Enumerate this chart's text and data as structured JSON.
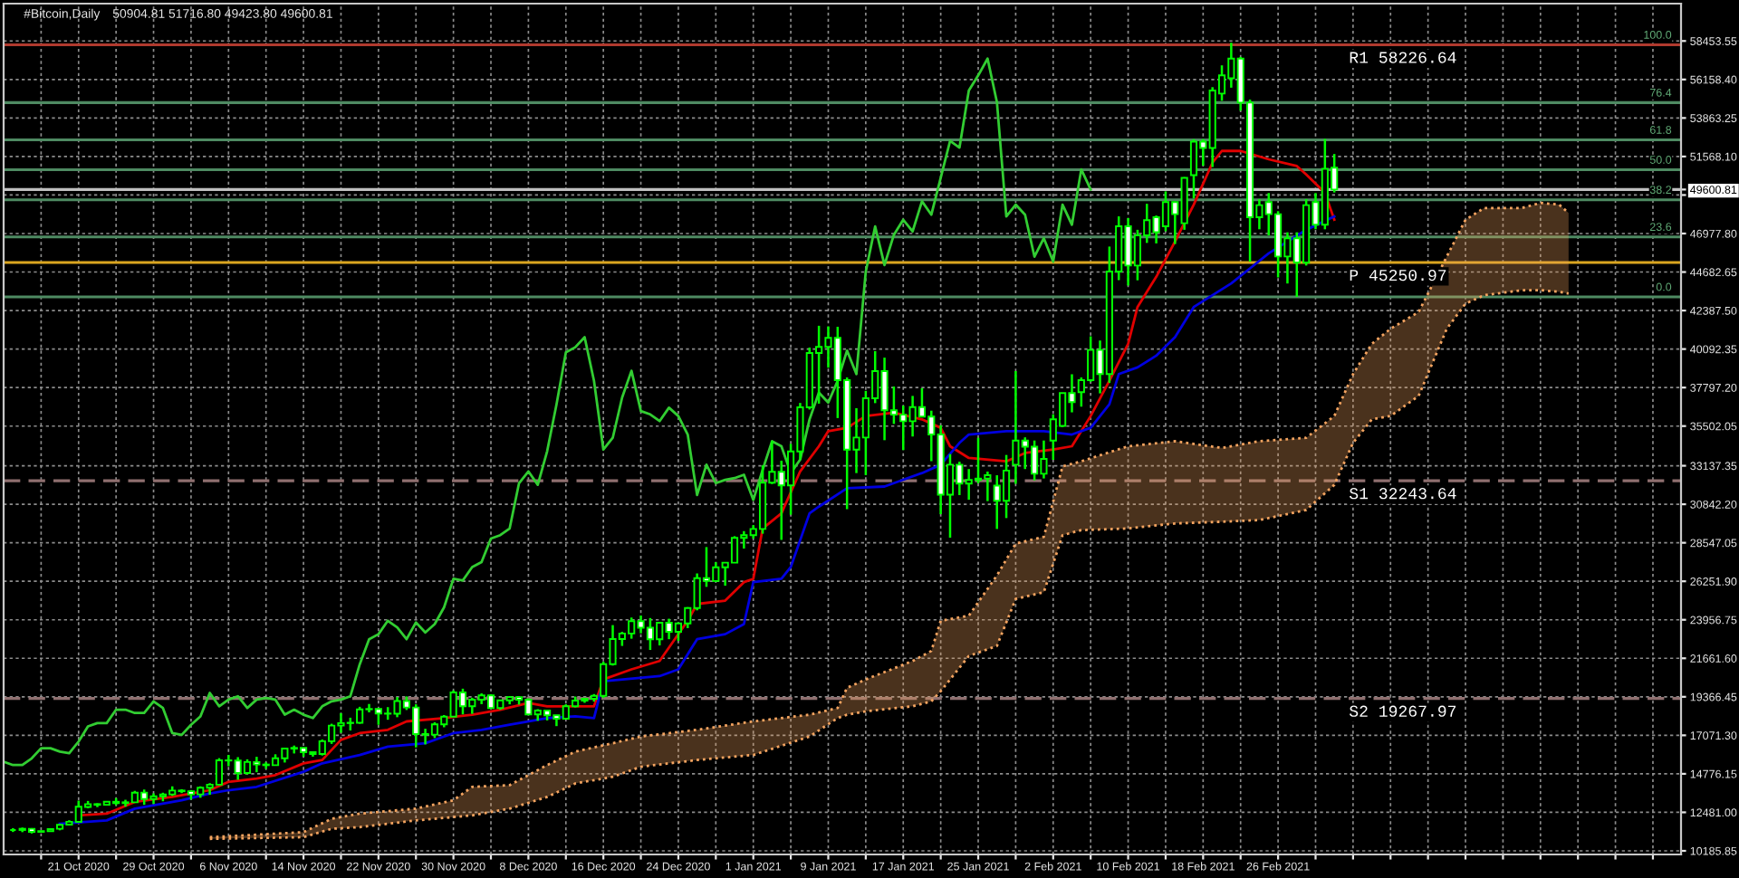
{
  "chart_data": {
    "type": "candlestick",
    "title": "#Bitcoin,Daily",
    "subtitle": "50904.81 51716.80 49423.80 49600.81",
    "x": [
      "2020-10-14",
      "2020-10-15",
      "2020-10-16",
      "2020-10-17",
      "2020-10-18",
      "2020-10-19",
      "2020-10-20",
      "2020-10-21",
      "2020-10-22",
      "2020-10-23",
      "2020-10-24",
      "2020-10-25",
      "2020-10-26",
      "2020-10-27",
      "2020-10-28",
      "2020-10-29",
      "2020-10-30",
      "2020-10-31",
      "2020-11-01",
      "2020-11-02",
      "2020-11-03",
      "2020-11-04",
      "2020-11-05",
      "2020-11-06",
      "2020-11-07",
      "2020-11-08",
      "2020-11-09",
      "2020-11-10",
      "2020-11-11",
      "2020-11-12",
      "2020-11-13",
      "2020-11-14",
      "2020-11-15",
      "2020-11-16",
      "2020-11-17",
      "2020-11-18",
      "2020-11-19",
      "2020-11-20",
      "2020-11-21",
      "2020-11-22",
      "2020-11-23",
      "2020-11-24",
      "2020-11-25",
      "2020-11-26",
      "2020-11-27",
      "2020-11-28",
      "2020-11-29",
      "2020-11-30",
      "2020-12-01",
      "2020-12-02",
      "2020-12-03",
      "2020-12-04",
      "2020-12-05",
      "2020-12-06",
      "2020-12-07",
      "2020-12-08",
      "2020-12-09",
      "2020-12-10",
      "2020-12-11",
      "2020-12-12",
      "2020-12-13",
      "2020-12-14",
      "2020-12-15",
      "2020-12-16",
      "2020-12-17",
      "2020-12-18",
      "2020-12-19",
      "2020-12-20",
      "2020-12-21",
      "2020-12-22",
      "2020-12-23",
      "2020-12-24",
      "2020-12-25",
      "2020-12-26",
      "2020-12-27",
      "2020-12-28",
      "2020-12-29",
      "2020-12-30",
      "2020-12-31",
      "2021-01-01",
      "2021-01-02",
      "2021-01-03",
      "2021-01-04",
      "2021-01-05",
      "2021-01-06",
      "2021-01-07",
      "2021-01-08",
      "2021-01-09",
      "2021-01-10",
      "2021-01-11",
      "2021-01-12",
      "2021-01-13",
      "2021-01-14",
      "2021-01-15",
      "2021-01-16",
      "2021-01-17",
      "2021-01-18",
      "2021-01-19",
      "2021-01-20",
      "2021-01-21",
      "2021-01-22",
      "2021-01-23",
      "2021-01-24",
      "2021-01-25",
      "2021-01-26",
      "2021-01-27",
      "2021-01-28",
      "2021-01-29",
      "2021-01-30",
      "2021-01-31",
      "2021-02-01",
      "2021-02-02",
      "2021-02-03",
      "2021-02-04",
      "2021-02-05",
      "2021-02-06",
      "2021-02-07",
      "2021-02-08",
      "2021-02-09",
      "2021-02-10",
      "2021-02-11",
      "2021-02-12",
      "2021-02-13",
      "2021-02-14",
      "2021-02-15",
      "2021-02-16",
      "2021-02-17",
      "2021-02-18",
      "2021-02-19",
      "2021-02-20",
      "2021-02-21",
      "2021-02-22",
      "2021-02-23",
      "2021-02-24",
      "2021-02-25",
      "2021-02-26",
      "2021-02-27",
      "2021-02-28",
      "2021-03-01",
      "2021-03-02",
      "2021-03-03",
      "2021-03-04"
    ],
    "ohlc": [
      [
        11430,
        11540,
        11310,
        11430
      ],
      [
        11430,
        11570,
        11300,
        11500
      ],
      [
        11500,
        11540,
        11220,
        11320
      ],
      [
        11320,
        11390,
        11290,
        11360
      ],
      [
        11360,
        11480,
        11350,
        11480
      ],
      [
        11500,
        11800,
        11410,
        11740
      ],
      [
        11750,
        12010,
        11720,
        11920
      ],
      [
        11910,
        13180,
        11900,
        12820
      ],
      [
        12800,
        13160,
        12720,
        12970
      ],
      [
        12970,
        13020,
        12790,
        12930
      ],
      [
        12930,
        13150,
        12890,
        13110
      ],
      [
        13110,
        13330,
        12910,
        13030
      ],
      [
        13030,
        13230,
        12820,
        13080
      ],
      [
        13080,
        13760,
        13060,
        13650
      ],
      [
        13660,
        13840,
        12930,
        13270
      ],
      [
        13270,
        13610,
        12980,
        13440
      ],
      [
        13440,
        13650,
        13140,
        13550
      ],
      [
        13550,
        14030,
        13460,
        13780
      ],
      [
        13780,
        13860,
        13630,
        13740
      ],
      [
        13740,
        13810,
        13240,
        13550
      ],
      [
        13550,
        14030,
        13350,
        13950
      ],
      [
        13950,
        14220,
        13530,
        14130
      ],
      [
        14130,
        15710,
        14100,
        15580
      ],
      [
        15580,
        15900,
        15230,
        15570
      ],
      [
        15570,
        15770,
        14420,
        14830
      ],
      [
        14830,
        15640,
        14740,
        15480
      ],
      [
        15480,
        15790,
        14870,
        15330
      ],
      [
        15330,
        15460,
        15070,
        15290
      ],
      [
        15290,
        15940,
        15280,
        15700
      ],
      [
        15700,
        16320,
        15450,
        16280
      ],
      [
        16280,
        16460,
        15990,
        16320
      ],
      [
        16320,
        16330,
        15800,
        16070
      ],
      [
        16070,
        16120,
        15800,
        15960
      ],
      [
        15960,
        16820,
        15870,
        16720
      ],
      [
        16720,
        17760,
        16560,
        17650
      ],
      [
        17650,
        18390,
        17220,
        17800
      ],
      [
        17800,
        18120,
        17360,
        17820
      ],
      [
        17820,
        18770,
        17760,
        18620
      ],
      [
        18620,
        18940,
        18440,
        18640
      ],
      [
        18640,
        18680,
        17700,
        18370
      ],
      [
        18370,
        18750,
        18000,
        18360
      ],
      [
        18360,
        19350,
        18150,
        19110
      ],
      [
        19110,
        19390,
        18580,
        18730
      ],
      [
        18730,
        18920,
        16350,
        17150
      ],
      [
        17150,
        17460,
        16530,
        17110
      ],
      [
        17110,
        17850,
        16910,
        17720
      ],
      [
        17720,
        18280,
        17550,
        18180
      ],
      [
        18180,
        19750,
        18170,
        19630
      ],
      [
        19630,
        19850,
        18320,
        18800
      ],
      [
        18800,
        19310,
        18350,
        19200
      ],
      [
        19200,
        19570,
        18930,
        19450
      ],
      [
        19450,
        19510,
        18700,
        18700
      ],
      [
        18700,
        19160,
        18590,
        19150
      ],
      [
        19150,
        19410,
        18920,
        19350
      ],
      [
        19350,
        19390,
        18900,
        19190
      ],
      [
        19190,
        19280,
        18270,
        18320
      ],
      [
        18320,
        18630,
        17940,
        18550
      ],
      [
        18550,
        18560,
        17960,
        18260
      ],
      [
        18260,
        18270,
        17620,
        18060
      ],
      [
        18060,
        18920,
        18050,
        18800
      ],
      [
        18800,
        19380,
        18730,
        19140
      ],
      [
        19140,
        19310,
        19010,
        19250
      ],
      [
        19250,
        19530,
        19080,
        19420
      ],
      [
        19420,
        21460,
        19300,
        21310
      ],
      [
        21310,
        23640,
        21230,
        22810
      ],
      [
        22810,
        23240,
        22400,
        23140
      ],
      [
        23140,
        24090,
        22830,
        23870
      ],
      [
        23870,
        24210,
        23150,
        23480
      ],
      [
        23480,
        24060,
        22160,
        22800
      ],
      [
        22800,
        23790,
        22430,
        23780
      ],
      [
        23780,
        24020,
        22800,
        23240
      ],
      [
        23240,
        23800,
        22700,
        23740
      ],
      [
        23740,
        24710,
        23460,
        24660
      ],
      [
        24660,
        26720,
        24520,
        26440
      ],
      [
        26440,
        28290,
        25920,
        26270
      ],
      [
        26270,
        27390,
        26210,
        27080
      ],
      [
        27080,
        27370,
        25990,
        27360
      ],
      [
        27360,
        28940,
        27360,
        28840
      ],
      [
        28840,
        29240,
        28200,
        29000
      ],
      [
        29000,
        29600,
        28800,
        29370
      ],
      [
        29370,
        33160,
        29090,
        32130
      ],
      [
        32130,
        34610,
        32050,
        32780
      ],
      [
        32780,
        33440,
        28720,
        31970
      ],
      [
        31970,
        34440,
        30220,
        33990
      ],
      [
        33990,
        36880,
        33510,
        36620
      ],
      [
        36620,
        40180,
        36490,
        39860
      ],
      [
        39860,
        41480,
        36840,
        40220
      ],
      [
        40220,
        41440,
        38980,
        40760
      ],
      [
        40760,
        41420,
        35980,
        38240
      ],
      [
        38240,
        38400,
        30550,
        34100
      ],
      [
        34100,
        36570,
        32700,
        34820
      ],
      [
        34820,
        37600,
        32580,
        37160
      ],
      [
        37160,
        39970,
        36870,
        38780
      ],
      [
        38780,
        39580,
        34660,
        36440
      ],
      [
        36440,
        37860,
        35630,
        36180
      ],
      [
        36180,
        36720,
        34070,
        35790
      ],
      [
        35790,
        37300,
        34880,
        36630
      ],
      [
        36630,
        37760,
        36070,
        36070
      ],
      [
        36070,
        36420,
        33410,
        35000
      ],
      [
        35000,
        35550,
        30250,
        31410
      ],
      [
        31410,
        33830,
        28850,
        33200
      ],
      [
        33200,
        33380,
        31390,
        32070
      ],
      [
        32070,
        32940,
        31110,
        32290
      ],
      [
        32290,
        34800,
        32090,
        32370
      ],
      [
        32370,
        32790,
        31030,
        32570
      ],
      [
        31950,
        32570,
        29370,
        31050
      ],
      [
        31050,
        33780,
        30020,
        32850
      ],
      [
        33200,
        38780,
        32060,
        34640
      ],
      [
        34640,
        34830,
        32940,
        34270
      ],
      [
        34270,
        34640,
        32270,
        32660
      ],
      [
        32660,
        34640,
        32380,
        33540
      ],
      [
        34640,
        36200,
        33490,
        35900
      ],
      [
        35510,
        37480,
        35440,
        37470
      ],
      [
        37470,
        38590,
        36320,
        36930
      ],
      [
        37520,
        38400,
        36660,
        38240
      ],
      [
        38240,
        40850,
        38140,
        40040
      ],
      [
        40040,
        40600,
        37450,
        38600
      ],
      [
        38600,
        46200,
        38080,
        44710
      ],
      [
        44710,
        48000,
        44200,
        47410
      ],
      [
        47410,
        47900,
        43880,
        45070
      ],
      [
        45070,
        47200,
        44190,
        46870
      ],
      [
        46870,
        48750,
        46420,
        47770
      ],
      [
        47950,
        48050,
        46390,
        47060
      ],
      [
        47410,
        49490,
        47110,
        48850
      ],
      [
        48850,
        48880,
        46350,
        48130
      ],
      [
        47590,
        50340,
        47200,
        50290
      ],
      [
        50460,
        52600,
        49070,
        52450
      ],
      [
        52450,
        52600,
        51020,
        52080
      ],
      [
        52080,
        55700,
        50940,
        55500
      ],
      [
        55320,
        57000,
        54890,
        56400
      ],
      [
        56230,
        58350,
        55670,
        57400
      ],
      [
        57400,
        57500,
        54300,
        54780
      ],
      [
        54780,
        54960,
        45300,
        47950
      ],
      [
        47950,
        49030,
        47230,
        48670
      ],
      [
        48850,
        49390,
        46870,
        48130
      ],
      [
        48130,
        48310,
        44360,
        45610
      ],
      [
        45610,
        47050,
        44000,
        46690
      ],
      [
        46690,
        47050,
        43200,
        45250
      ],
      [
        45250,
        49030,
        45070,
        48670
      ],
      [
        48850,
        49390,
        47230,
        47500
      ],
      [
        47500,
        52620,
        47230,
        50830
      ],
      [
        50904.81,
        51716.8,
        49423.8,
        49600.81
      ]
    ],
    "color": "#00ff00",
    "colors": [
      "#00ff00",
      "#000000",
      "#ffffff",
      "#000000",
      "#000000",
      "#000000",
      "#000000",
      "#000000",
      "#000000",
      "#ffffff",
      "#000000",
      "#ffffff",
      "#000000",
      "#000000",
      "#ffffff",
      "#000000",
      "#000000",
      "#000000",
      "#ffffff",
      "#ffffff",
      "#000000",
      "#000000",
      "#000000",
      "#00ff00",
      "#ffffff",
      "#000000",
      "#ffffff",
      "#ffffff",
      "#000000",
      "#000000",
      "#000000",
      "#ffffff",
      "#ffffff",
      "#000000",
      "#000000",
      "#000000",
      "#00ff00",
      "#000000",
      "#00ff00",
      "#ffffff",
      "#00ff00",
      "#000000",
      "#ffffff",
      "#ffffff",
      "#ffffff",
      "#000000",
      "#000000",
      "#000000",
      "#ffffff",
      "#000000",
      "#000000",
      "#ffffff",
      "#000000",
      "#000000",
      "#ffffff",
      "#ffffff",
      "#000000",
      "#ffffff",
      "#ffffff",
      "#000000",
      "#000000",
      "#000000",
      "#000000",
      "#000000",
      "#000000",
      "#000000",
      "#000000",
      "#ffffff",
      "#ffffff",
      "#000000",
      "#ffffff",
      "#000000",
      "#000000",
      "#000000",
      "#ffffff",
      "#000000",
      "#000000",
      "#000000",
      "#000000",
      "#000000",
      "#000000",
      "#000000",
      "#ffffff",
      "#000000",
      "#000000",
      "#000000",
      "#000000",
      "#000000",
      "#ffffff",
      "#ffffff",
      "#000000",
      "#000000",
      "#000000",
      "#ffffff",
      "#ffffff",
      "#ffffff",
      "#000000",
      "#ffffff",
      "#ffffff",
      "#ffffff",
      "#000000",
      "#ffffff",
      "#000000",
      "#000000",
      "#000000",
      "#ffffff",
      "#000000",
      "#000000",
      "#ffffff",
      "#ffffff",
      "#000000",
      "#000000",
      "#000000",
      "#ffffff",
      "#000000",
      "#000000",
      "#ffffff",
      "#000000",
      "#000000",
      "#ffffff",
      "#000000",
      "#000000",
      "#ffffff",
      "#000000",
      "#ffffff",
      "#000000",
      "#000000",
      "#ffffff",
      "#000000",
      "#000000",
      "#000000",
      "#ffffff",
      "#ffffff",
      "#000000",
      "#ffffff",
      "#ffffff",
      "#000000",
      "#ffffff",
      "#000000",
      "#ffffff",
      "#000000",
      "#ffffff"
    ],
    "series": [
      {
        "type": "line",
        "color": "#f4a460",
        "line_style": "dotted",
        "x": [
          "2020-11-04",
          "2020-11-14",
          "2020-11-17",
          "2020-11-20",
          "2020-11-26",
          "2020-11-30",
          "2020-12-02",
          "2020-12-06",
          "2020-12-10",
          "2020-12-13",
          "2020-12-17",
          "2020-12-20",
          "2020-12-26",
          "2021-01-01",
          "2021-01-07",
          "2021-01-10",
          "2021-01-11",
          "2021-01-13",
          "2021-01-18",
          "2021-01-20",
          "2021-01-21",
          "2021-01-24",
          "2021-01-27",
          "2021-01-29",
          "2021-02-01",
          "2021-02-03",
          "2021-02-05",
          "2021-02-10",
          "2021-02-15",
          "2021-02-20",
          "2021-02-24",
          "2021-03-01",
          "2021-03-04",
          "2021-03-06",
          "2021-03-08",
          "2021-03-10",
          "2021-03-13",
          "2021-03-16",
          "2021-03-18",
          "2021-03-20",
          "2021-03-24",
          "2021-03-26",
          "2021-03-28",
          "2021-03-29"
        ],
        "values": [
          11000,
          11300,
          12100,
          12400,
          12700,
          13200,
          14000,
          14100,
          15300,
          16100,
          16600,
          17000,
          17400,
          17900,
          18300,
          18700,
          19900,
          20400,
          21500,
          22100,
          23900,
          24200,
          26600,
          28500,
          28900,
          33100,
          33400,
          34300,
          34600,
          34200,
          34600,
          34800,
          36100,
          38600,
          40400,
          41300,
          42300,
          45600,
          47800,
          48500,
          48500,
          48800,
          48700,
          48200
        ],
        "lower": [
          10900,
          11000,
          11500,
          11600,
          12000,
          12200,
          12300,
          12700,
          13400,
          14200,
          14600,
          15200,
          15600,
          15900,
          17000,
          18100,
          18300,
          18500,
          18800,
          19100,
          19700,
          21800,
          22400,
          25200,
          25600,
          29000,
          29300,
          29400,
          29700,
          29800,
          29900,
          30500,
          32000,
          34500,
          35900,
          36100,
          37300,
          41300,
          42800,
          43300,
          43600,
          43600,
          43500,
          43400
        ],
        "upper": [
          11000,
          11300,
          12100,
          12400,
          12700,
          13200,
          14000,
          14100,
          15300,
          16100,
          16600,
          17000,
          17400,
          17900,
          18300,
          18700,
          19900,
          20400,
          21500,
          22100,
          23900,
          24200,
          26600,
          28500,
          28900,
          33100,
          33400,
          34300,
          34600,
          34200,
          34600,
          34800,
          36100,
          38600,
          40400,
          41300,
          42300,
          45600,
          47800,
          48500,
          48500,
          48800,
          48700,
          48200
        ]
      },
      {
        "type": "line",
        "color": "#f4a460",
        "line_style": "dotted",
        "x": [
          "2020-11-04",
          "2020-11-14",
          "2020-11-17",
          "2020-11-20",
          "2020-11-26",
          "2020-11-30",
          "2020-12-02",
          "2020-12-06",
          "2020-12-10",
          "2020-12-13",
          "2020-12-17",
          "2020-12-20",
          "2020-12-26",
          "2021-01-01",
          "2021-01-07",
          "2021-01-10",
          "2021-01-11",
          "2021-01-13",
          "2021-01-18",
          "2021-01-20",
          "2021-01-21",
          "2021-01-24",
          "2021-01-27",
          "2021-01-29",
          "2021-02-01",
          "2021-02-03",
          "2021-02-05",
          "2021-02-10",
          "2021-02-15",
          "2021-02-20",
          "2021-02-24",
          "2021-03-01",
          "2021-03-04",
          "2021-03-06",
          "2021-03-08",
          "2021-03-10",
          "2021-03-13",
          "2021-03-16",
          "2021-03-18",
          "2021-03-20",
          "2021-03-24",
          "2021-03-26",
          "2021-03-28",
          "2021-03-29"
        ],
        "values": [
          10900,
          11000,
          11500,
          11600,
          12000,
          12200,
          12300,
          12700,
          13400,
          14200,
          14600,
          15200,
          15600,
          15900,
          17000,
          18100,
          18300,
          18500,
          18800,
          19100,
          19700,
          21800,
          22400,
          25200,
          25600,
          29000,
          29300,
          29400,
          29700,
          29800,
          29900,
          30500,
          32000,
          34500,
          35900,
          36100,
          37300,
          41300,
          42800,
          43300,
          43600,
          43600,
          43500,
          43400
        ]
      },
      {
        "type": "line",
        "color": "#32cd32",
        "x": [
          "2020-10-13",
          "2020-10-14",
          "2020-10-15",
          "2020-10-16",
          "2020-10-17",
          "2020-10-18",
          "2020-10-19",
          "2020-10-20",
          "2020-10-21",
          "2020-10-22",
          "2020-10-23",
          "2020-10-24",
          "2020-10-25",
          "2020-10-26",
          "2020-10-27",
          "2020-10-28",
          "2020-10-29",
          "2020-10-30",
          "2020-10-31",
          "2020-11-01",
          "2020-11-02",
          "2020-11-03",
          "2020-11-04",
          "2020-11-05",
          "2020-11-06",
          "2020-11-07",
          "2020-11-08",
          "2020-11-09",
          "2020-11-10",
          "2020-11-11",
          "2020-11-12",
          "2020-11-13",
          "2020-11-14",
          "2020-11-15",
          "2020-11-16",
          "2020-11-17",
          "2020-11-18",
          "2020-11-19",
          "2020-11-20",
          "2020-11-21",
          "2020-11-22",
          "2020-11-23",
          "2020-11-24",
          "2020-11-25",
          "2020-11-26",
          "2020-11-27",
          "2020-11-28",
          "2020-11-29",
          "2020-11-30",
          "2020-12-01",
          "2020-12-02",
          "2020-12-03",
          "2020-12-04",
          "2020-12-05",
          "2020-12-06",
          "2020-12-07",
          "2020-12-08",
          "2020-12-09",
          "2020-12-10",
          "2020-12-11",
          "2020-12-12",
          "2020-12-13",
          "2020-12-14",
          "2020-12-15",
          "2020-12-16",
          "2020-12-17",
          "2020-12-18",
          "2020-12-19",
          "2020-12-20",
          "2020-12-21",
          "2020-12-22",
          "2020-12-23",
          "2020-12-24",
          "2020-12-25",
          "2020-12-26",
          "2020-12-27",
          "2020-12-28",
          "2020-12-29",
          "2020-12-30",
          "2020-12-31",
          "2021-01-01",
          "2021-01-02",
          "2021-01-03",
          "2021-01-04",
          "2021-01-05",
          "2021-01-06",
          "2021-01-07",
          "2021-01-08",
          "2021-01-09",
          "2021-01-10",
          "2021-01-11",
          "2021-01-12",
          "2021-01-13",
          "2021-01-14",
          "2021-01-15",
          "2021-01-16",
          "2021-01-17",
          "2021-01-18",
          "2021-01-19",
          "2021-01-20",
          "2021-01-21",
          "2021-01-22",
          "2021-01-23",
          "2021-01-24",
          "2021-01-25",
          "2021-01-26",
          "2021-01-27",
          "2021-01-28",
          "2021-01-29",
          "2021-01-30",
          "2021-01-31",
          "2021-02-01",
          "2021-02-02",
          "2021-02-03",
          "2021-02-04",
          "2021-02-05",
          "2021-02-06"
        ],
        "values": [
          15500,
          15300,
          15300,
          15700,
          16300,
          16300,
          16100,
          16000,
          16700,
          17600,
          17800,
          17800,
          18600,
          18600,
          18400,
          18400,
          19100,
          18700,
          17200,
          17100,
          17700,
          18200,
          19600,
          18800,
          19200,
          19400,
          18700,
          19200,
          19300,
          19200,
          18300,
          18600,
          18300,
          18100,
          18800,
          19100,
          19200,
          19400,
          21300,
          22800,
          23100,
          23900,
          23500,
          22800,
          23800,
          23200,
          23700,
          24700,
          26400,
          26300,
          27100,
          27400,
          28800,
          29000,
          29400,
          32100,
          32800,
          32000,
          34000,
          36800,
          39900,
          40200,
          40800,
          38200,
          34100,
          34800,
          37200,
          38800,
          36400,
          36200,
          35800,
          36600,
          36100,
          35000,
          31400,
          33200,
          32100,
          32300,
          32400,
          32600,
          31100,
          32900,
          34600,
          34300,
          32700,
          33500,
          35900,
          37500,
          36900,
          38200,
          40000,
          38600,
          44700,
          47400,
          45100,
          46900,
          47800,
          47100,
          48900,
          48100,
          50300,
          52500,
          52100,
          55500,
          56400,
          57400,
          54800,
          48000,
          48700,
          48100,
          45600,
          46700,
          45300,
          48700,
          47500,
          50800,
          49600
        ]
      },
      {
        "type": "line",
        "color": "#e00000",
        "x": [
          "2020-10-21",
          "2020-10-24",
          "2020-10-27",
          "2020-10-31",
          "2020-11-04",
          "2020-11-06",
          "2020-11-09",
          "2020-11-11",
          "2020-11-14",
          "2020-11-16",
          "2020-11-18",
          "2020-11-20",
          "2020-11-23",
          "2020-11-25",
          "2020-11-29",
          "2020-12-02",
          "2020-12-05",
          "2020-12-08",
          "2020-12-10",
          "2020-12-15",
          "2020-12-16",
          "2020-12-19",
          "2020-12-22",
          "2020-12-25",
          "2020-12-26",
          "2020-12-29",
          "2020-12-31",
          "2021-01-01",
          "2021-01-02",
          "2021-01-04",
          "2021-01-06",
          "2021-01-08",
          "2021-01-09",
          "2021-01-11",
          "2021-01-13",
          "2021-01-16",
          "2021-01-19",
          "2021-01-21",
          "2021-01-22",
          "2021-01-24",
          "2021-01-28",
          "2021-01-30",
          "2021-02-02",
          "2021-02-04",
          "2021-02-06",
          "2021-02-08",
          "2021-02-10",
          "2021-02-11",
          "2021-02-13",
          "2021-02-15",
          "2021-02-17",
          "2021-02-19",
          "2021-02-20",
          "2021-02-22",
          "2021-02-25",
          "2021-02-28",
          "2021-03-01",
          "2021-03-03",
          "2021-03-04"
        ],
        "values": [
          12300,
          12400,
          13100,
          13400,
          13800,
          14300,
          14500,
          14700,
          15400,
          15600,
          16800,
          17200,
          17400,
          17900,
          18100,
          18300,
          18600,
          19000,
          18800,
          18800,
          20400,
          21000,
          21500,
          23900,
          24900,
          25100,
          26200,
          26400,
          29400,
          30300,
          32800,
          34300,
          35200,
          35400,
          36100,
          36300,
          35900,
          35400,
          34300,
          33600,
          33400,
          33900,
          34100,
          34300,
          36100,
          38200,
          40400,
          42600,
          44400,
          46500,
          48700,
          51200,
          51900,
          51900,
          51400,
          51000,
          50500,
          49400,
          47800
        ]
      },
      {
        "type": "line",
        "color": "#0000e0",
        "x": [
          "2020-10-19",
          "2020-10-24",
          "2020-10-27",
          "2020-11-01",
          "2020-11-04",
          "2020-11-06",
          "2020-11-09",
          "2020-11-14",
          "2020-11-16",
          "2020-11-20",
          "2020-11-23",
          "2020-11-27",
          "2020-11-30",
          "2020-12-03",
          "2020-12-06",
          "2020-12-10",
          "2020-12-13",
          "2020-12-15",
          "2020-12-16",
          "2020-12-22",
          "2020-12-24",
          "2020-12-26",
          "2020-12-29",
          "2020-12-31",
          "2021-01-01",
          "2021-01-04",
          "2021-01-05",
          "2021-01-07",
          "2021-01-08",
          "2021-01-11",
          "2021-01-15",
          "2021-01-19",
          "2021-01-21",
          "2021-01-23",
          "2021-01-24",
          "2021-01-28",
          "2021-02-01",
          "2021-02-04",
          "2021-02-06",
          "2021-02-08",
          "2021-02-09",
          "2021-02-11",
          "2021-02-13",
          "2021-02-15",
          "2021-02-17",
          "2021-02-19",
          "2021-02-21",
          "2021-02-23",
          "2021-02-25",
          "2021-03-01",
          "2021-03-04"
        ],
        "values": [
          11800,
          12000,
          12700,
          13200,
          13600,
          13800,
          14000,
          14900,
          15400,
          15900,
          16400,
          16600,
          17200,
          17400,
          17700,
          18100,
          18200,
          18100,
          20300,
          20600,
          21000,
          22800,
          23100,
          23700,
          26200,
          26400,
          27100,
          30300,
          30700,
          31800,
          31900,
          32700,
          33200,
          34500,
          35000,
          35200,
          35200,
          35000,
          35400,
          36800,
          38600,
          39000,
          39700,
          40800,
          42600,
          43300,
          44000,
          44900,
          45800,
          47200,
          48000
        ]
      }
    ],
    "xlim": [
      "2020-10-13",
      "2021-04-10"
    ],
    "xticks": [
      {
        "value": "2020-10-17",
        "label": null
      },
      {
        "value": "2020-10-21",
        "label": "21 Oct 2020"
      },
      {
        "value": "2020-10-25",
        "label": null
      },
      {
        "value": "2020-10-29",
        "label": "29 Oct 2020"
      },
      {
        "value": "2020-11-02",
        "label": null
      },
      {
        "value": "2020-11-06",
        "label": "6 Nov 2020"
      },
      {
        "value": "2020-11-10",
        "label": null
      },
      {
        "value": "2020-11-14",
        "label": "14 Nov 2020"
      },
      {
        "value": "2020-11-18",
        "label": null
      },
      {
        "value": "2020-11-22",
        "label": "22 Nov 2020"
      },
      {
        "value": "2020-11-26",
        "label": null
      },
      {
        "value": "2020-11-30",
        "label": "30 Nov 2020"
      },
      {
        "value": "2020-12-04",
        "label": null
      },
      {
        "value": "2020-12-08",
        "label": "8 Dec 2020"
      },
      {
        "value": "2020-12-12",
        "label": null
      },
      {
        "value": "2020-12-16",
        "label": "16 Dec 2020"
      },
      {
        "value": "2020-12-20",
        "label": null
      },
      {
        "value": "2020-12-24",
        "label": "24 Dec 2020"
      },
      {
        "value": "2020-12-28",
        "label": null
      },
      {
        "value": "2021-01-01",
        "label": "1 Jan 2021"
      },
      {
        "value": "2021-01-05",
        "label": null
      },
      {
        "value": "2021-01-09",
        "label": "9 Jan 2021"
      },
      {
        "value": "2021-01-13",
        "label": null
      },
      {
        "value": "2021-01-17",
        "label": "17 Jan 2021"
      },
      {
        "value": "2021-01-21",
        "label": null
      },
      {
        "value": "2021-01-25",
        "label": "25 Jan 2021"
      },
      {
        "value": "2021-01-29",
        "label": null
      },
      {
        "value": "2021-02-02",
        "label": "2 Feb 2021"
      },
      {
        "value": "2021-02-06",
        "label": null
      },
      {
        "value": "2021-02-10",
        "label": "10 Feb 2021"
      },
      {
        "value": "2021-02-14",
        "label": null
      },
      {
        "value": "2021-02-18",
        "label": "18 Feb 2021"
      },
      {
        "value": "2021-02-22",
        "label": null
      },
      {
        "value": "2021-02-26",
        "label": "26 Feb 2021"
      },
      {
        "value": "2021-03-02",
        "label": null
      },
      {
        "value": "2021-03-06",
        "label": null
      },
      {
        "value": "2021-03-10",
        "label": null
      },
      {
        "value": "2021-03-14",
        "label": null
      },
      {
        "value": "2021-03-18",
        "label": null
      },
      {
        "value": "2021-03-22",
        "label": null
      },
      {
        "value": "2021-03-26",
        "label": null
      },
      {
        "value": "2021-03-30",
        "label": null
      },
      {
        "value": "2021-04-03",
        "label": null
      },
      {
        "value": "2021-04-07",
        "label": null
      }
    ],
    "ylim": [
      9970,
      60680
    ],
    "yticks": [
      58453.55,
      {
        "value": 56158.4,
        "label": "56158.40"
      },
      53863.25,
      {
        "value": 51568.1,
        "label": "51568.10"
      },
      49600.81,
      {
        "value": 49272.95,
        "label": null
      },
      {
        "value": 46977.8,
        "label": "46977.80"
      },
      44682.65,
      {
        "value": 42387.5,
        "label": "42387.50"
      },
      40092.35,
      {
        "value": 37797.2,
        "label": "37797.20"
      },
      35502.05,
      33137.35,
      {
        "value": 30842.2,
        "label": "30842.20"
      },
      28547.05,
      {
        "value": 26251.9,
        "label": "26251.90"
      },
      23956.75,
      {
        "value": 21661.6,
        "label": "21661.60"
      },
      19366.45,
      {
        "value": 17071.3,
        "label": "17071.30"
      },
      14776.15,
      {
        "value": 12481.0,
        "label": "12481.00"
      },
      10185.85
    ],
    "ref_lines": [
      {
        "axis": "y",
        "value": 49600.81,
        "color": "#c0c0c0",
        "line_style": "solid"
      },
      {
        "axis": "y",
        "value": 58226.64,
        "label": "R1 58226.64",
        "color": "#b03a2e",
        "line_style": "solid"
      },
      {
        "axis": "y",
        "value": 45250.97,
        "label": "P 45250.97",
        "color": "#daa520",
        "line_style": "solid"
      },
      {
        "axis": "y",
        "value": 32243.64,
        "label": "S1 32243.64",
        "color": "#8f6f6f",
        "line_style": "dashed"
      },
      {
        "axis": "y",
        "value": 19267.97,
        "label": "S2 19267.97",
        "color": "#8f6f6f",
        "line_style": "dashed"
      },
      {
        "axis": "y",
        "value": 54780,
        "color": "#4e8a62",
        "line_style": "solid"
      },
      {
        "axis": "y",
        "value": 52560,
        "color": "#4e8a62",
        "line_style": "solid"
      },
      {
        "axis": "y",
        "value": 50780,
        "color": "#4e8a62",
        "line_style": "solid"
      },
      {
        "axis": "y",
        "value": 48990,
        "color": "#4e8a62",
        "line_style": "solid"
      },
      {
        "axis": "y",
        "value": 46780,
        "color": "#4e8a62",
        "line_style": "solid"
      },
      {
        "axis": "y",
        "value": 43200,
        "color": "#4e8a62",
        "line_style": "solid"
      }
    ],
    "annotations": [
      {
        "text": "100.0",
        "x": "2021-04-09",
        "y": 58226.64
      },
      {
        "text": "76.4",
        "x": "2021-04-09",
        "y": 54780
      },
      {
        "text": "61.8",
        "x": "2021-04-09",
        "y": 52560
      },
      {
        "text": "50.0",
        "x": "2021-04-09",
        "y": 50780
      },
      {
        "text": "38.2",
        "x": "2021-04-09",
        "y": 48990
      },
      {
        "text": "23.6",
        "x": "2021-04-09",
        "y": 46780
      },
      {
        "text": "0.0",
        "x": "2021-04-09",
        "y": 43200
      }
    ],
    "grid": true
  }
}
